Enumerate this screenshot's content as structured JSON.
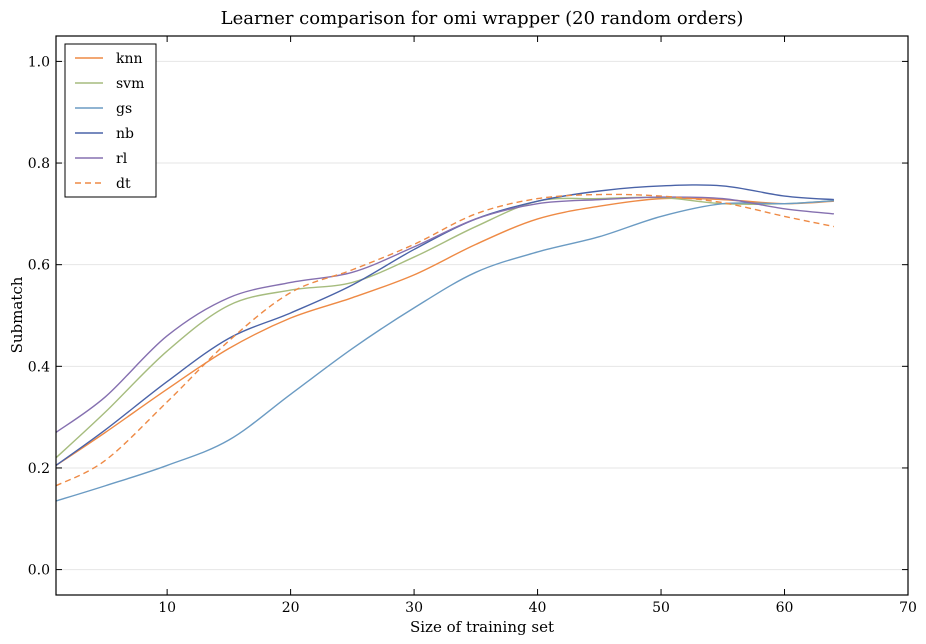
{
  "chart_data": {
    "type": "line",
    "title": "Learner comparison for omi wrapper (20 random orders)",
    "xlabel": "Size of training set",
    "ylabel": "Submatch",
    "xlim": [
      1,
      70
    ],
    "ylim": [
      -0.05,
      1.05
    ],
    "xticks": [
      10,
      20,
      30,
      40,
      50,
      60,
      70
    ],
    "yticks": [
      0.0,
      0.2,
      0.4,
      0.6,
      0.8,
      1.0
    ],
    "xtick_labels": [
      "10",
      "20",
      "30",
      "40",
      "50",
      "60",
      "70"
    ],
    "ytick_labels": [
      "0.0",
      "0.2",
      "0.4",
      "0.6",
      "0.8",
      "1.0"
    ],
    "grid": "horizontal",
    "legend": "top-left",
    "x": [
      1,
      5,
      10,
      15,
      20,
      25,
      30,
      35,
      40,
      45,
      50,
      55,
      60,
      64
    ],
    "series": [
      {
        "name": "knn",
        "color": "#ee8a45",
        "dash": false,
        "values": [
          0.205,
          0.27,
          0.355,
          0.435,
          0.495,
          0.535,
          0.58,
          0.64,
          0.69,
          0.715,
          0.73,
          0.728,
          0.72,
          0.725
        ]
      },
      {
        "name": "svm",
        "color": "#a6bc7e",
        "dash": false,
        "values": [
          0.22,
          0.31,
          0.43,
          0.52,
          0.55,
          0.565,
          0.615,
          0.675,
          0.725,
          0.73,
          0.732,
          0.72,
          0.72,
          0.726
        ]
      },
      {
        "name": "gs",
        "color": "#6b9bc3",
        "dash": false,
        "values": [
          0.135,
          0.165,
          0.205,
          0.255,
          0.345,
          0.435,
          0.515,
          0.585,
          0.625,
          0.655,
          0.695,
          0.72,
          0.72,
          0.726
        ]
      },
      {
        "name": "nb",
        "color": "#4a63a8",
        "dash": false,
        "values": [
          0.205,
          0.275,
          0.37,
          0.455,
          0.505,
          0.56,
          0.63,
          0.69,
          0.725,
          0.745,
          0.755,
          0.755,
          0.735,
          0.728
        ]
      },
      {
        "name": "rl",
        "color": "#8570b0",
        "dash": false,
        "values": [
          0.27,
          0.34,
          0.46,
          0.535,
          0.565,
          0.585,
          0.635,
          0.69,
          0.72,
          0.728,
          0.733,
          0.73,
          0.71,
          0.7
        ]
      },
      {
        "name": "dt",
        "color": "#ee8a45",
        "dash": true,
        "values": [
          0.165,
          0.215,
          0.33,
          0.45,
          0.545,
          0.59,
          0.64,
          0.7,
          0.73,
          0.738,
          0.735,
          0.722,
          0.695,
          0.675
        ]
      }
    ]
  }
}
